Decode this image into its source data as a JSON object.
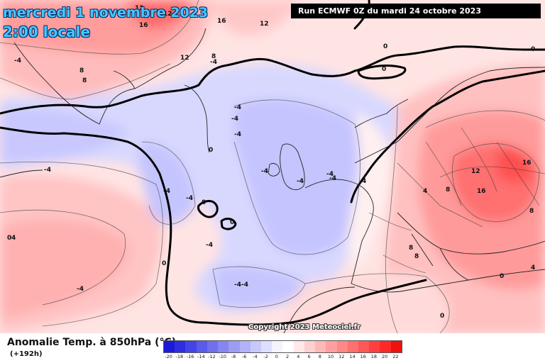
{
  "header": {
    "date": "mercredi 1 novembre 2023",
    "time": "2:00 locale",
    "run": "Run ECMWF 0Z du mardi 24 octobre 2023"
  },
  "copyright": "Copyright 2023 Meteociel.fr",
  "legend": {
    "title": "Anomalie Temp. à 850hPa (°C)",
    "lead": "(+192h)",
    "ticks": [
      "-20",
      "-18",
      "-16",
      "-14",
      "-12",
      "-10",
      "-8",
      "-6",
      "-4",
      "-2",
      "0",
      "2",
      "4",
      "6",
      "8",
      "10",
      "12",
      "14",
      "16",
      "18",
      "20",
      "22"
    ],
    "colors": [
      "#1a1ad8",
      "#2e2ee0",
      "#4444e6",
      "#5a5aeb",
      "#7070ee",
      "#8686f2",
      "#9c9cf5",
      "#b2b2f8",
      "#c8c8fb",
      "#dedefd",
      "#f4f4ff",
      "#ffffff",
      "#ffe8e8",
      "#ffd0d0",
      "#ffb8b8",
      "#ffa0a0",
      "#ff8888",
      "#ff7070",
      "#ff5858",
      "#ff4040",
      "#ff2828",
      "#f01010"
    ]
  },
  "contour_labels": [
    "12",
    "16",
    "12",
    "16",
    "12",
    "2",
    "-4",
    "8",
    "8",
    "12",
    "8",
    "-4",
    "0",
    "0",
    "0",
    "-4",
    "-4",
    "-4",
    "0",
    "-4",
    "-4",
    "-4",
    "-4",
    "-4",
    "-4",
    "-4",
    "0",
    "0",
    "0",
    "-4",
    "-4",
    "4",
    "12",
    "16",
    "16",
    "8",
    "8",
    "8",
    "8",
    "0",
    "4",
    "4",
    "0",
    "4",
    "0",
    "-4",
    "-4"
  ]
}
